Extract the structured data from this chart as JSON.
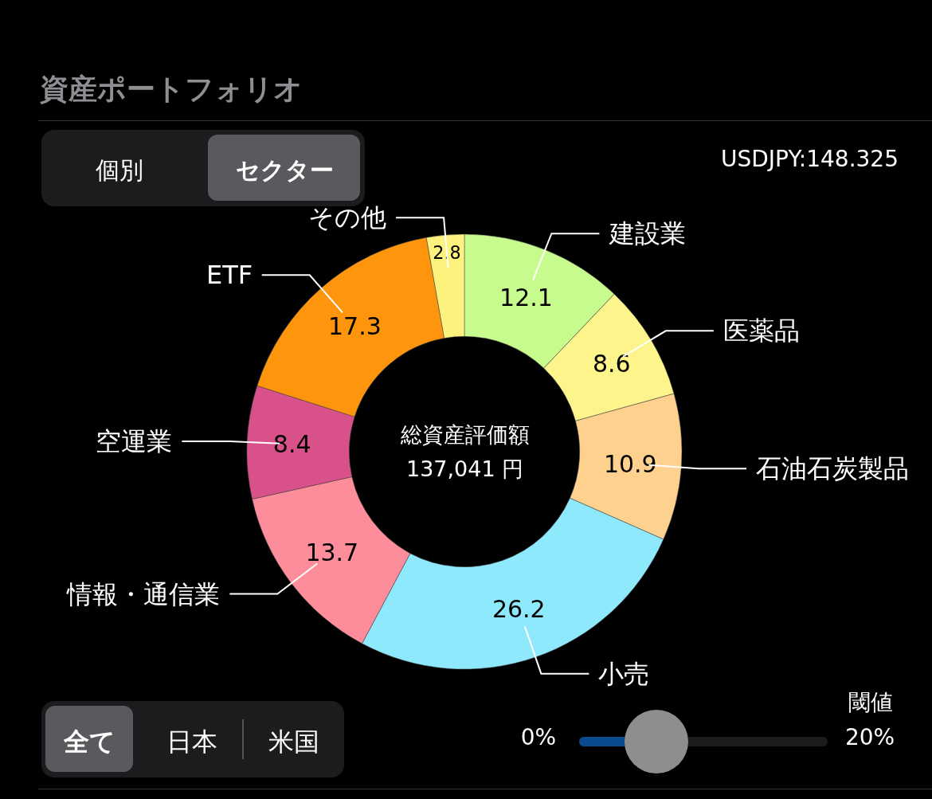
{
  "chart_data": {
    "type": "donut",
    "title": "資産ポートフォリオ",
    "categories": [
      "建設業",
      "医薬品",
      "石油石炭製品",
      "小売",
      "情報・通信業",
      "空運業",
      "ETF",
      "その他"
    ],
    "values": [
      12.1,
      8.6,
      10.9,
      26.2,
      13.7,
      8.4,
      17.3,
      2.8
    ],
    "colors": [
      "#c8fb8d",
      "#fdf48c",
      "#fed28e",
      "#8ee9fd",
      "#fe8d9b",
      "#d9518b",
      "#fe950c",
      "#fdf27e"
    ],
    "data_labels": true,
    "annotations": [
      "USDJPY:148.325",
      "総資産評価額",
      "137,041 円",
      "個別",
      "セクター",
      "全て",
      "日本",
      "米国",
      "閾値",
      "0%",
      "20%"
    ]
  }
}
